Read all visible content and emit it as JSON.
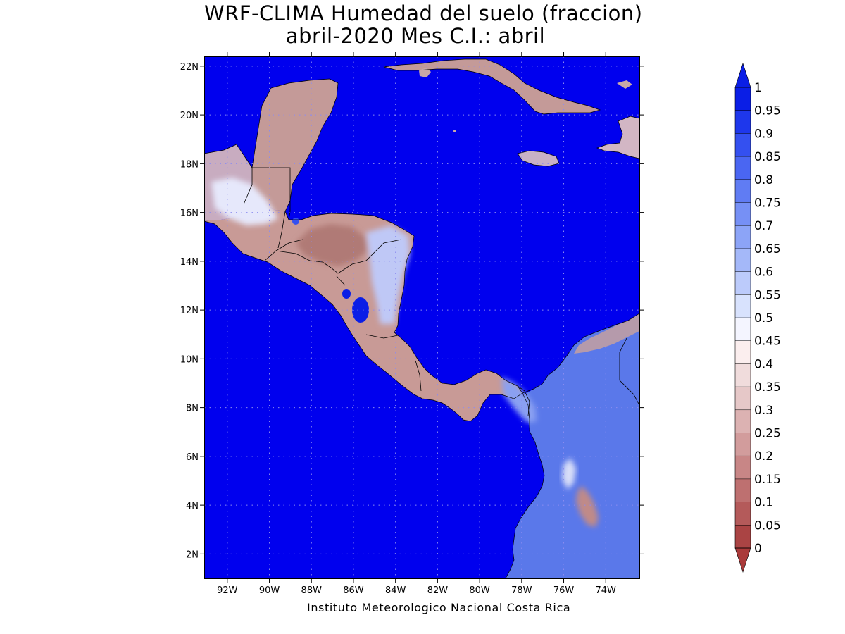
{
  "title": {
    "line1": "WRF-CLIMA Humedad del suelo (fraccion)",
    "line2": "abril-2020 Mes C.I.: abril"
  },
  "credit": "Instituto Meteorologico Nacional Costa Rica",
  "map": {
    "lon_range": [
      -93.1,
      -72.4
    ],
    "lat_range": [
      1.0,
      22.4
    ],
    "lon_ticks": [
      "92W",
      "90W",
      "88W",
      "86W",
      "84W",
      "82W",
      "80W",
      "78W",
      "76W",
      "74W"
    ],
    "lon_tick_values": [
      -92,
      -90,
      -88,
      -86,
      -84,
      -82,
      -80,
      -78,
      -76,
      -74
    ],
    "lat_ticks": [
      "2N",
      "4N",
      "6N",
      "8N",
      "10N",
      "12N",
      "14N",
      "16N",
      "18N",
      "20N",
      "22N"
    ],
    "lat_tick_values": [
      2,
      4,
      6,
      8,
      10,
      12,
      14,
      16,
      18,
      20,
      22
    ],
    "grid": "dotted",
    "ocean_color": "#0000ee"
  },
  "colorbar": {
    "labels": [
      "1",
      "0.95",
      "0.9",
      "0.85",
      "0.8",
      "0.75",
      "0.7",
      "0.65",
      "0.6",
      "0.55",
      "0.5",
      "0.45",
      "0.4",
      "0.35",
      "0.3",
      "0.25",
      "0.2",
      "0.15",
      "0.1",
      "0.05",
      "0"
    ],
    "colors": [
      "#0a1ee6",
      "#1e37ec",
      "#3450f0",
      "#4a66f2",
      "#607cf3",
      "#7690f5",
      "#8ca4f7",
      "#a4b8f9",
      "#bccbfb",
      "#d8e2fd",
      "#f4f5ff",
      "#fbeeee",
      "#f0dcdc",
      "#e6c8c8",
      "#dcb2b2",
      "#d29c9c",
      "#c88686",
      "#be7070",
      "#b45a5a",
      "#aa4444"
    ],
    "upper_arrow_color": "#0a1ee6",
    "lower_arrow_color": "#aa3a3a"
  }
}
